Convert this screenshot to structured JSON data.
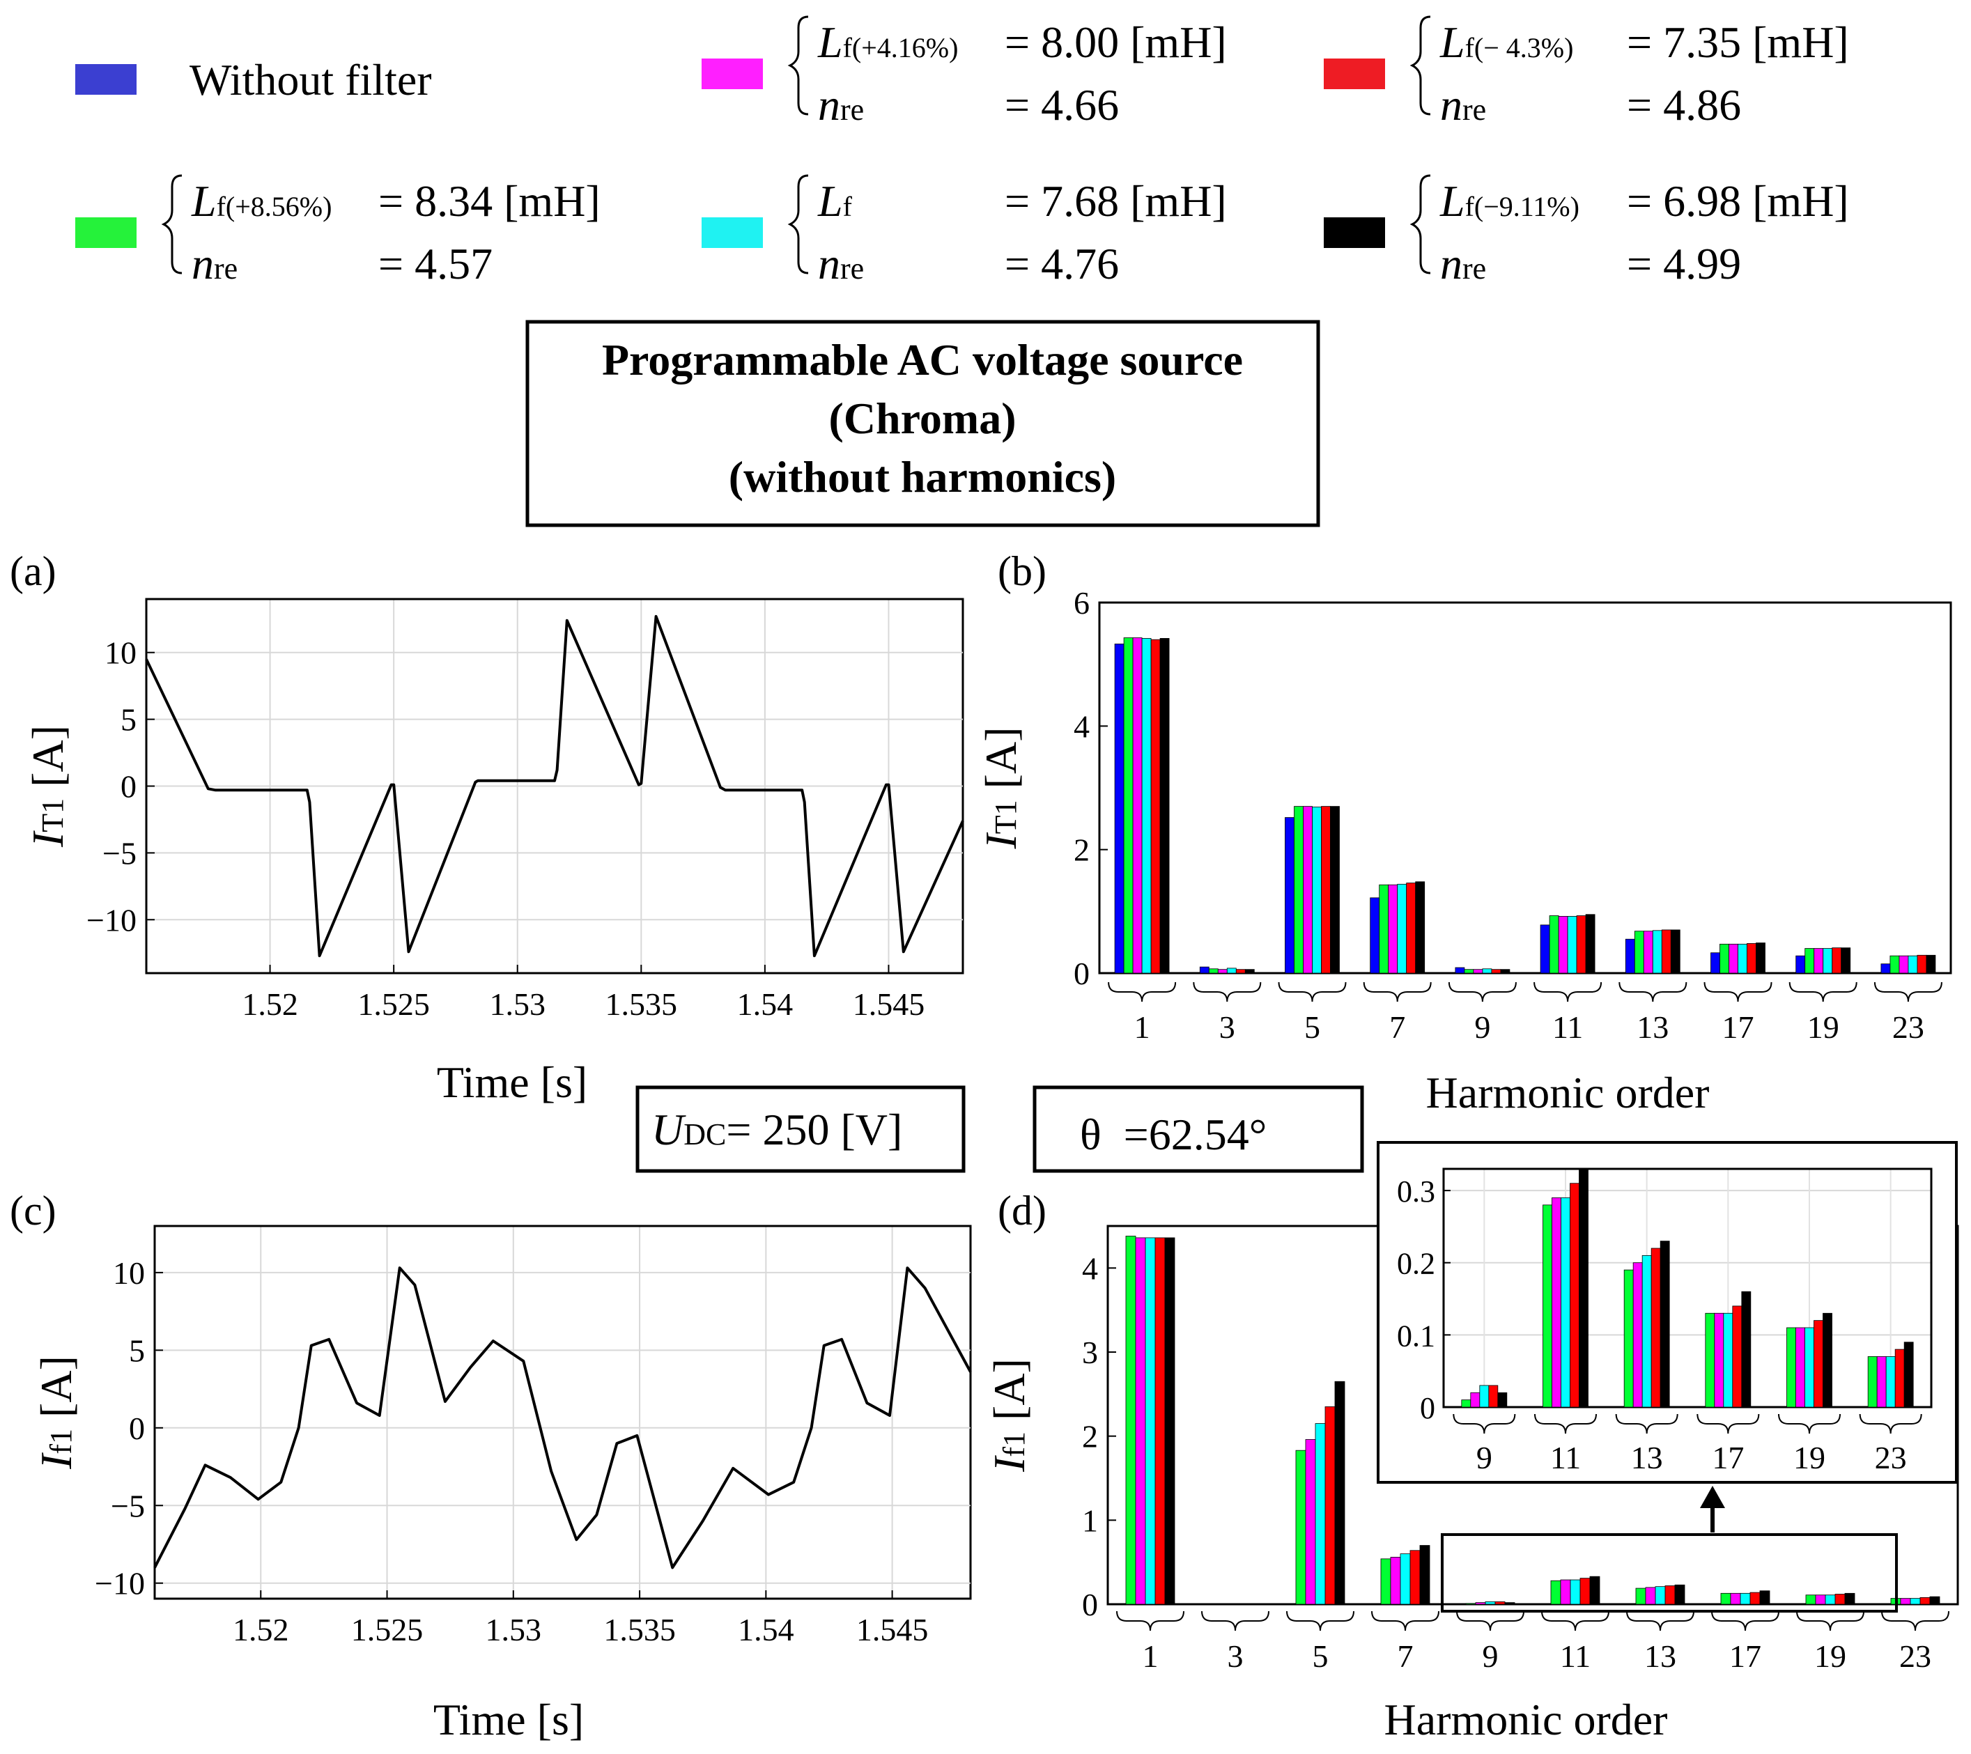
{
  "legend": [
    {
      "color": "#3b3fd1",
      "text": "Without filter"
    },
    {
      "color": "#ff1fff",
      "sym": "L",
      "sub": "f(+4.16%)",
      "val": "= 8.00 [mH]",
      "n_sym": "n",
      "n_sub": "re",
      "n_val": "= 4.66"
    },
    {
      "color": "#ee1c24",
      "sym": "L",
      "sub": "f(− 4.3%)",
      "val": "= 7.35 [mH]",
      "n_sym": "n",
      "n_sub": "re",
      "n_val": "= 4.86"
    },
    {
      "color": "#25f23a",
      "sym": "L",
      "sub": "f(+8.56%)",
      "val": "= 8.34 [mH]",
      "n_sym": "n",
      "n_sub": "re",
      "n_val": "= 4.57"
    },
    {
      "color": "#1ff2f2",
      "sym": "L",
      "sub": "f",
      "val": "= 7.68 [mH]",
      "n_sym": "n",
      "n_sub": "re",
      "n_val": "= 4.76"
    },
    {
      "color": "#000000",
      "sym": "L",
      "sub": "f(−9.11%)",
      "val": "= 6.98 [mH]",
      "n_sym": "n",
      "n_sub": "re",
      "n_val": "= 4.99"
    }
  ],
  "source_box": {
    "line1": "Programmable AC voltage source",
    "line2": "(Chroma)",
    "line3": "(without harmonics)"
  },
  "udc_box": {
    "sym": "U",
    "sub": "DC",
    "val": "= 250 [V]"
  },
  "theta_box": {
    "text": "θ  =62.54°"
  },
  "colors": {
    "s1": "#0000ff",
    "s2": "#00ff33",
    "s3": "#ff00ff",
    "s4": "#00ffff",
    "s5": "#ff0000",
    "s6": "#000000"
  },
  "chart_data": [
    {
      "panel": "(a)",
      "type": "line",
      "xlabel": "Time [s]",
      "ylabel_sym": "I",
      "ylabel_sub": "T1",
      "ylabel_unit": "[A]",
      "xlim": [
        1.515,
        1.548
      ],
      "ylim": [
        -14,
        14
      ],
      "xticks": [
        1.52,
        1.525,
        1.53,
        1.535,
        1.54,
        1.545
      ],
      "xticklabels": [
        "1.52",
        "1.525",
        "1.53",
        "1.535",
        "1.54",
        "1.545"
      ],
      "yticks": [
        -10,
        -5,
        0,
        5,
        10
      ],
      "yticklabels": [
        "−10",
        "−5",
        "0",
        "5",
        "10"
      ],
      "grid": true,
      "series": [
        {
          "x": [
            1.515,
            1.5175,
            1.5178,
            1.5215,
            1.5216,
            1.522,
            1.5249,
            1.525,
            1.5256,
            1.5283,
            1.5284,
            1.5315,
            1.5316,
            1.532,
            1.5349,
            1.535,
            1.5356,
            1.5382,
            1.5384,
            1.5415,
            1.5416,
            1.542,
            1.5449,
            1.545,
            1.5456,
            1.548
          ],
          "y": [
            9.5,
            -0.2,
            -0.3,
            -0.3,
            -1.2,
            -12.7,
            0.1,
            0.1,
            -12.4,
            0.3,
            0.4,
            0.4,
            1.2,
            12.4,
            0.1,
            0.2,
            12.7,
            -0.1,
            -0.3,
            -0.3,
            -1.2,
            -12.7,
            0.1,
            0.1,
            -12.4,
            -2.6
          ]
        }
      ]
    },
    {
      "panel": "(b)",
      "type": "bar",
      "xlabel": "Harmonic order",
      "ylabel_sym": "I",
      "ylabel_sub": "T1",
      "ylabel_unit": "[A]",
      "ylim": [
        0,
        6
      ],
      "yticks": [
        0,
        2,
        4,
        6
      ],
      "yticklabels": [
        "0",
        "2",
        "4",
        "6"
      ],
      "categories": [
        "1",
        "3",
        "5",
        "7",
        "9",
        "11",
        "13",
        "17",
        "19",
        "23"
      ],
      "series": [
        {
          "values": [
            5.33,
            0.1,
            2.52,
            1.22,
            0.09,
            0.78,
            0.55,
            0.33,
            0.28,
            0.15
          ]
        },
        {
          "values": [
            5.43,
            0.07,
            2.7,
            1.43,
            0.06,
            0.93,
            0.68,
            0.47,
            0.4,
            0.28
          ]
        },
        {
          "values": [
            5.43,
            0.06,
            2.7,
            1.43,
            0.06,
            0.92,
            0.68,
            0.47,
            0.4,
            0.28
          ]
        },
        {
          "values": [
            5.42,
            0.08,
            2.69,
            1.44,
            0.07,
            0.92,
            0.69,
            0.47,
            0.4,
            0.28
          ]
        },
        {
          "values": [
            5.4,
            0.06,
            2.7,
            1.46,
            0.06,
            0.93,
            0.7,
            0.48,
            0.41,
            0.29
          ]
        },
        {
          "values": [
            5.42,
            0.06,
            2.7,
            1.48,
            0.06,
            0.95,
            0.7,
            0.49,
            0.41,
            0.29
          ]
        }
      ]
    },
    {
      "panel": "(c)",
      "type": "line",
      "xlabel": "Time [s]",
      "ylabel_sym": "I",
      "ylabel_sub": "f1",
      "ylabel_unit": "[A]",
      "xlim": [
        1.5158,
        1.5481
      ],
      "ylim": [
        -11,
        13
      ],
      "xticks": [
        1.52,
        1.525,
        1.53,
        1.535,
        1.54,
        1.545
      ],
      "xticklabels": [
        "1.52",
        "1.525",
        "1.53",
        "1.535",
        "1.54",
        "1.545"
      ],
      "yticks": [
        -10,
        -5,
        0,
        5,
        10
      ],
      "yticklabels": [
        "−10",
        "−5",
        "0",
        "5",
        "10"
      ],
      "grid": true,
      "series": [
        {
          "x": [
            1.5158,
            1.517,
            1.5178,
            1.5188,
            1.5199,
            1.5208,
            1.5215,
            1.522,
            1.5227,
            1.5238,
            1.5247,
            1.5255,
            1.5261,
            1.5273,
            1.5283,
            1.5292,
            1.5304,
            1.5315,
            1.5325,
            1.5333,
            1.5341,
            1.5349,
            1.5363,
            1.5375,
            1.5387,
            1.5401,
            1.5411,
            1.5418,
            1.5423,
            1.543,
            1.544,
            1.5449,
            1.5456,
            1.5463,
            1.5481
          ],
          "y": [
            -9,
            -5.2,
            -2.4,
            -3.2,
            -4.6,
            -3.5,
            0,
            5.3,
            5.7,
            1.6,
            0.8,
            10.3,
            9.2,
            1.7,
            3.9,
            5.6,
            4.3,
            -2.8,
            -7.2,
            -5.6,
            -1.0,
            -0.5,
            -9.0,
            -6.0,
            -2.6,
            -4.3,
            -3.5,
            0,
            5.3,
            5.7,
            1.6,
            0.8,
            10.3,
            9.0,
            3.6
          ]
        }
      ]
    },
    {
      "panel": "(d)",
      "type": "bar",
      "xlabel": "Harmonic order",
      "ylabel_sym": "I",
      "ylabel_sub": "f1",
      "ylabel_unit": "[A]",
      "ylim": [
        0,
        4.5
      ],
      "yticks": [
        0,
        1,
        2,
        3,
        4
      ],
      "yticklabels": [
        "0",
        "1",
        "2",
        "3",
        "4"
      ],
      "categories": [
        "1",
        "3",
        "5",
        "7",
        "9",
        "11",
        "13",
        "17",
        "19",
        "23"
      ],
      "series": [
        {
          "values": [
            4.38,
            0.005,
            1.83,
            0.54,
            0.01,
            0.28,
            0.19,
            0.13,
            0.11,
            0.07
          ]
        },
        {
          "values": [
            4.36,
            0.005,
            1.96,
            0.56,
            0.02,
            0.29,
            0.2,
            0.13,
            0.11,
            0.07
          ]
        },
        {
          "values": [
            4.36,
            0.005,
            2.15,
            0.6,
            0.03,
            0.29,
            0.21,
            0.13,
            0.11,
            0.07
          ]
        },
        {
          "values": [
            4.36,
            0.006,
            2.35,
            0.64,
            0.03,
            0.31,
            0.22,
            0.14,
            0.12,
            0.08
          ]
        },
        {
          "values": [
            4.36,
            0.004,
            2.65,
            0.7,
            0.02,
            0.33,
            0.23,
            0.16,
            0.13,
            0.09
          ]
        }
      ],
      "inset": {
        "categories": [
          "9",
          "11",
          "13",
          "17",
          "19",
          "23"
        ],
        "ylim": [
          0,
          0.33
        ],
        "yticks": [
          0,
          0.1,
          0.2,
          0.3
        ],
        "yticklabels": [
          "0",
          "0.1",
          "0.2",
          "0.3"
        ]
      }
    }
  ]
}
